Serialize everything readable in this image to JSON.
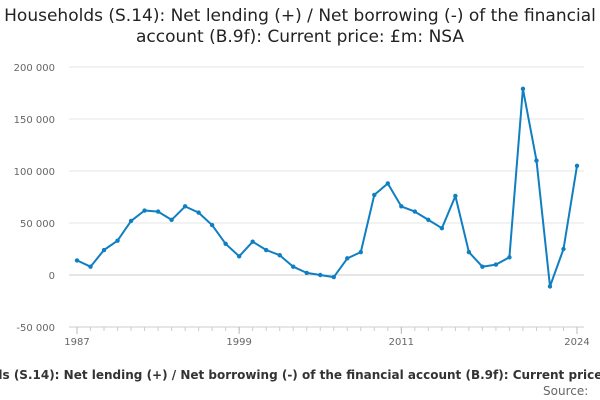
{
  "chart_data": {
    "type": "line",
    "title": "Households (S.14): Net lending (+) / Net borrowing (-) of the financial account (B.9f): Current price: £m: NSA",
    "xlabel": "",
    "ylabel": "",
    "xlim": [
      1987,
      2024
    ],
    "ylim": [
      -50000,
      200000
    ],
    "y_ticks": [
      -50000,
      0,
      50000,
      100000,
      150000,
      200000
    ],
    "y_tick_labels": [
      "-50 000",
      "0",
      "50 000",
      "100 000",
      "150 000",
      "200 000"
    ],
    "x_ticks": [
      1987,
      1999,
      2011,
      2024
    ],
    "x_tick_labels": [
      "1987",
      "1999",
      "2011",
      "2024"
    ],
    "grid": "horizontal",
    "color": "#0f7fc1",
    "legend_position": "bottom",
    "series": [
      {
        "name": "Households (S.14): Net lending (+) / Net borrowing (-) of the financial account (B.9f): Current price: £m: NSA",
        "x": [
          1987,
          1988,
          1989,
          1990,
          1991,
          1992,
          1993,
          1994,
          1995,
          1996,
          1997,
          1998,
          1999,
          2000,
          2001,
          2002,
          2003,
          2004,
          2005,
          2006,
          2007,
          2008,
          2009,
          2010,
          2011,
          2012,
          2013,
          2014,
          2015,
          2016,
          2017,
          2018,
          2019,
          2020,
          2021,
          2022,
          2023,
          2024
        ],
        "values": [
          14000,
          8000,
          24000,
          33000,
          52000,
          62000,
          61000,
          53000,
          66000,
          60000,
          48000,
          30000,
          18000,
          32000,
          24000,
          19000,
          8000,
          2000,
          0,
          -2000,
          16000,
          22000,
          77000,
          88000,
          66000,
          61000,
          53000,
          45000,
          76000,
          22000,
          8000,
          10000,
          17000,
          179000,
          110000,
          -11000,
          25000,
          105000
        ]
      }
    ],
    "source_label": "Source:"
  }
}
